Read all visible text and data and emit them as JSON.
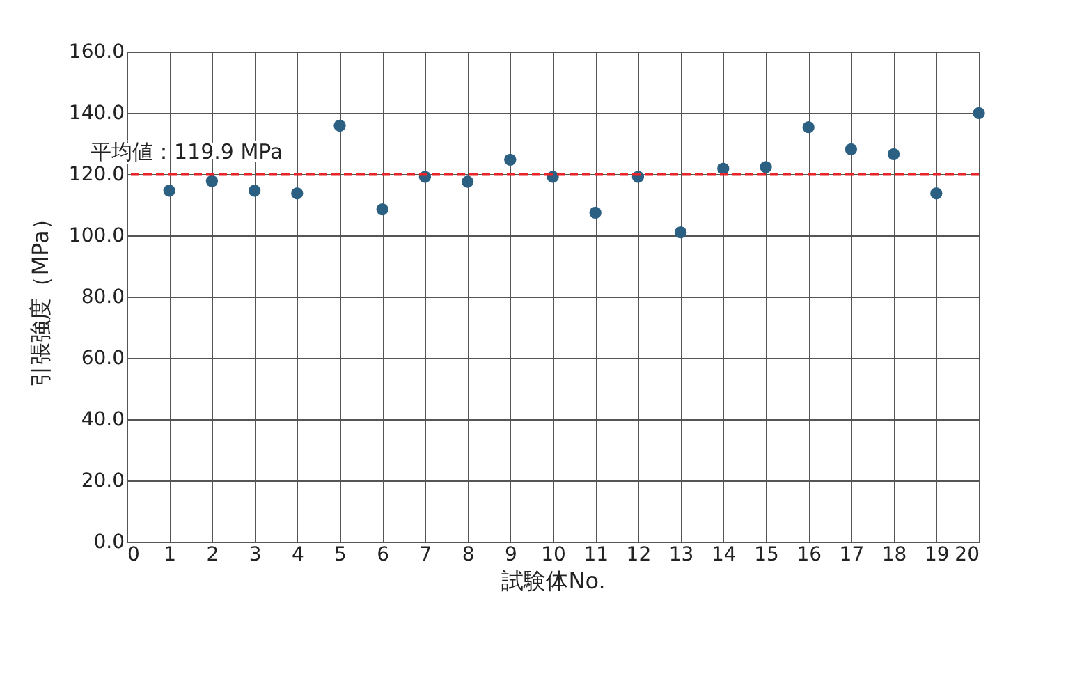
{
  "chart_data": {
    "type": "scatter",
    "xlabel": "試験体No.",
    "ylabel": "引張強度（MPa）",
    "x": [
      1,
      2,
      3,
      4,
      5,
      6,
      7,
      8,
      9,
      10,
      11,
      12,
      13,
      14,
      15,
      16,
      17,
      18,
      19,
      20
    ],
    "series": [
      {
        "color": "#2b6082",
        "values": [
          114.6,
          117.7,
          114.6,
          113.7,
          135.8,
          108.5,
          119.1,
          117.5,
          124.7,
          119.1,
          107.4,
          119.1,
          101.0,
          121.8,
          122.3,
          135.3,
          128.1,
          126.5,
          113.7,
          139.9
        ]
      }
    ],
    "xlim": [
      0,
      20
    ],
    "xticks": [
      0,
      1,
      2,
      3,
      4,
      5,
      6,
      7,
      8,
      9,
      10,
      11,
      12,
      13,
      14,
      15,
      16,
      17,
      18,
      19,
      20
    ],
    "ylim": [
      0,
      160
    ],
    "yticks": [
      {
        "value": 0,
        "label": "0.0"
      },
      {
        "value": 20,
        "label": "20.0"
      },
      {
        "value": 40,
        "label": "40.0"
      },
      {
        "value": 60,
        "label": "60.0"
      },
      {
        "value": 80,
        "label": "80.0"
      },
      {
        "value": 100,
        "label": "100.0"
      },
      {
        "value": 120,
        "label": "120.0"
      },
      {
        "value": 140,
        "label": "140.0"
      },
      {
        "value": 160,
        "label": "160.0"
      }
    ],
    "ref_lines": [
      {
        "axis": "y",
        "value": 119.9,
        "label": "平均値：119.9 MPa",
        "color": "#e8262a",
        "line_style": "dashed"
      }
    ],
    "grid": true,
    "marker": "circle"
  }
}
